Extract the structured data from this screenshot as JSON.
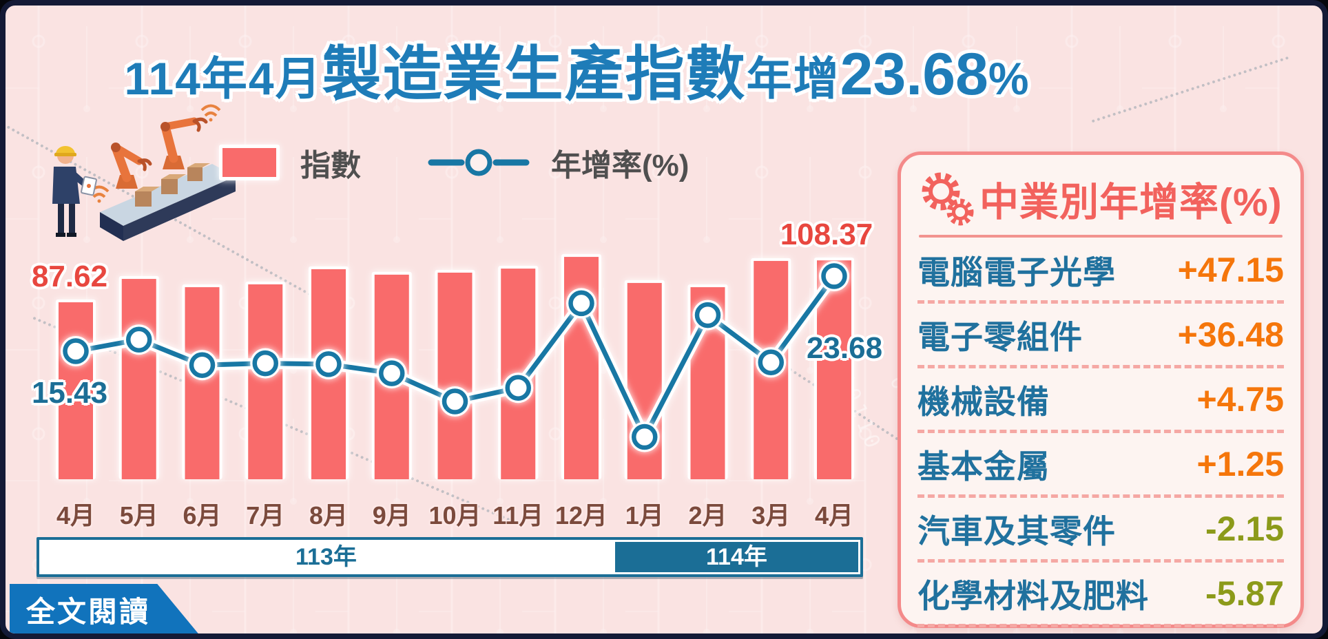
{
  "title": {
    "year_month": "114年4月",
    "subject": "製造業生產指數",
    "verb": "年增",
    "value": "23.68",
    "unit": "%"
  },
  "legend": {
    "bar_label": "指數",
    "line_label": "年增率(%)"
  },
  "chart_data": {
    "type": "bar+line",
    "categories": [
      "4月",
      "5月",
      "6月",
      "7月",
      "8月",
      "9月",
      "10月",
      "11月",
      "12月",
      "1月",
      "2月",
      "3月",
      "4月"
    ],
    "series": [
      {
        "name": "指數",
        "type": "bar",
        "values": [
          87.62,
          99.2,
          95.1,
          96.5,
          104.0,
          101.3,
          102.3,
          104.3,
          110.1,
          97.2,
          95.1,
          108.1,
          108.37
        ]
      },
      {
        "name": "年增率(%)",
        "type": "line",
        "values": [
          15.43,
          16.7,
          13.9,
          14.1,
          14.0,
          13.0,
          9.9,
          11.4,
          20.7,
          6.0,
          19.4,
          14.2,
          23.68
        ]
      }
    ],
    "data_labels": {
      "bar_first": "87.62",
      "bar_last": "108.37",
      "line_first": "15.43",
      "line_last": "23.68"
    },
    "x_axis_years": [
      {
        "label": "113年",
        "from_index": 0,
        "to_index": 8
      },
      {
        "label": "114年",
        "from_index": 9,
        "to_index": 12
      }
    ],
    "ylim_bar": [
      0,
      118
    ],
    "grid": false,
    "legend_position": "top"
  },
  "side_panel": {
    "title": "中業別年增率(%)",
    "rows": [
      {
        "label": "電腦電子光學",
        "value": "+47.15"
      },
      {
        "label": "電子零組件",
        "value": "+36.48"
      },
      {
        "label": "機械設備",
        "value": "+4.75"
      },
      {
        "label": "基本金屬",
        "value": "+1.25"
      },
      {
        "label": "汽車及其零件",
        "value": "-2.15"
      },
      {
        "label": "化學材料及肥料",
        "value": "-5.87"
      }
    ]
  },
  "footer": {
    "read_more": "全文閱讀"
  },
  "colors": {
    "background": "#fae3e2",
    "bar": "#f96b6b",
    "line": "#1877a4",
    "title_blue": "#1e7cb8",
    "index_label_red": "#e8473f",
    "rate_label_teal": "#1b6e96",
    "month_brown": "#7b4a3c",
    "year_band_teal": "#1b6e96",
    "panel_border": "#f48a8a",
    "panel_title": "#f2625d",
    "panel_label": "#20719e",
    "positive_value": "#f5760b",
    "negative_value": "#8c9a1a",
    "button_blue": "#1173bc"
  }
}
